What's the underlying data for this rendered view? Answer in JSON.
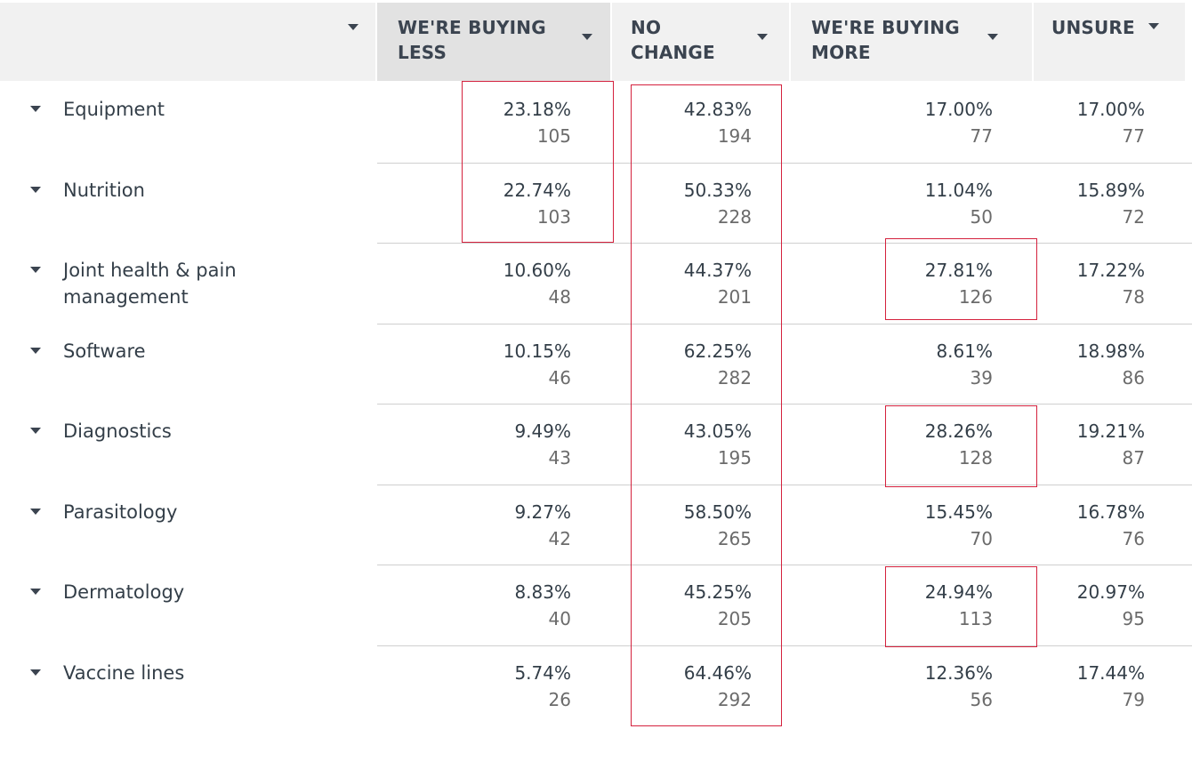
{
  "columns": [
    {
      "label": "WE'RE BUYING LESS"
    },
    {
      "label": "NO CHANGE"
    },
    {
      "label": "WE'RE BUYING MORE"
    },
    {
      "label": "UNSURE"
    }
  ],
  "rows": [
    {
      "label": "Equipment",
      "cells": [
        {
          "pct": "23.18%",
          "n": "105"
        },
        {
          "pct": "42.83%",
          "n": "194"
        },
        {
          "pct": "17.00%",
          "n": "77"
        },
        {
          "pct": "17.00%",
          "n": "77"
        }
      ]
    },
    {
      "label": "Nutrition",
      "cells": [
        {
          "pct": "22.74%",
          "n": "103"
        },
        {
          "pct": "50.33%",
          "n": "228"
        },
        {
          "pct": "11.04%",
          "n": "50"
        },
        {
          "pct": "15.89%",
          "n": "72"
        }
      ]
    },
    {
      "label": "Joint health & pain management",
      "cells": [
        {
          "pct": "10.60%",
          "n": "48"
        },
        {
          "pct": "44.37%",
          "n": "201"
        },
        {
          "pct": "27.81%",
          "n": "126"
        },
        {
          "pct": "17.22%",
          "n": "78"
        }
      ]
    },
    {
      "label": "Software",
      "cells": [
        {
          "pct": "10.15%",
          "n": "46"
        },
        {
          "pct": "62.25%",
          "n": "282"
        },
        {
          "pct": "8.61%",
          "n": "39"
        },
        {
          "pct": "18.98%",
          "n": "86"
        }
      ]
    },
    {
      "label": "Diagnostics",
      "cells": [
        {
          "pct": "9.49%",
          "n": "43"
        },
        {
          "pct": "43.05%",
          "n": "195"
        },
        {
          "pct": "28.26%",
          "n": "128"
        },
        {
          "pct": "19.21%",
          "n": "87"
        }
      ]
    },
    {
      "label": "Parasitology",
      "cells": [
        {
          "pct": "9.27%",
          "n": "42"
        },
        {
          "pct": "58.50%",
          "n": "265"
        },
        {
          "pct": "15.45%",
          "n": "70"
        },
        {
          "pct": "16.78%",
          "n": "76"
        }
      ]
    },
    {
      "label": "Dermatology",
      "cells": [
        {
          "pct": "8.83%",
          "n": "40"
        },
        {
          "pct": "45.25%",
          "n": "205"
        },
        {
          "pct": "24.94%",
          "n": "113"
        },
        {
          "pct": "20.97%",
          "n": "95"
        }
      ]
    },
    {
      "label": "Vaccine lines",
      "cells": [
        {
          "pct": "5.74%",
          "n": "26"
        },
        {
          "pct": "64.46%",
          "n": "292"
        },
        {
          "pct": "12.36%",
          "n": "56"
        },
        {
          "pct": "17.44%",
          "n": "79"
        }
      ]
    }
  ],
  "colors": {
    "highlight": "#d4213d",
    "header_bg": "#f1f1f1",
    "header_active_bg": "#e2e2e2"
  }
}
